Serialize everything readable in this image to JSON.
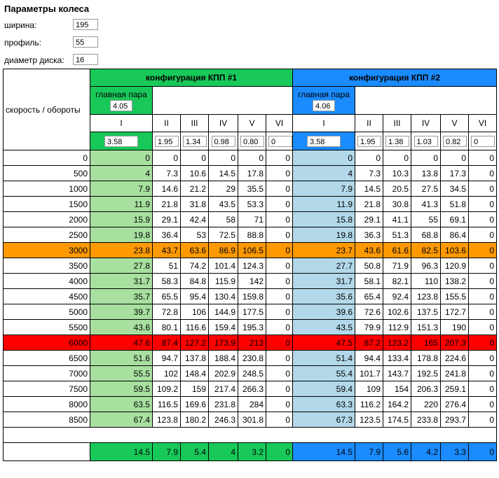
{
  "header": {
    "title": "Параметры колеса"
  },
  "params": [
    {
      "label": "ширина:",
      "value": "195"
    },
    {
      "label": "профиль:",
      "value": "55"
    },
    {
      "label": "диаметр диска:",
      "value": "16"
    }
  ],
  "table": {
    "corner": "скорость / обороты",
    "configs": [
      {
        "title": "конфигурация КПП #1",
        "color": "#18c95a",
        "light_color": "#a8e0a0",
        "main_pair_label": "главная пара",
        "main_pair": "4.05",
        "gears": [
          "I",
          "II",
          "III",
          "IV",
          "V",
          "VI"
        ],
        "ratios": [
          "3.58",
          "1.95",
          "1.34",
          "0.98",
          "0.80",
          "0"
        ],
        "totals": [
          "14.5",
          "7.9",
          "5.4",
          "4",
          "3.2",
          "0"
        ]
      },
      {
        "title": "конфигурация КПП #2",
        "color": "#1a8cff",
        "light_color": "#b2d8ea",
        "main_pair_label": "главная пара",
        "main_pair": "4.06",
        "gears": [
          "I",
          "II",
          "III",
          "IV",
          "V",
          "VI"
        ],
        "ratios": [
          "3.58",
          "1.95",
          "1.38",
          "1.03",
          "0.82",
          "0"
        ],
        "totals": [
          "14.5",
          "7.9",
          "5.6",
          "4.2",
          "3.3",
          "0"
        ]
      }
    ],
    "rows": [
      {
        "rpm": "0",
        "values": [
          [
            "0",
            "0",
            "0",
            "0",
            "0",
            "0"
          ],
          [
            "0",
            "0",
            "0",
            "0",
            "0",
            "0"
          ]
        ]
      },
      {
        "rpm": "500",
        "values": [
          [
            "4",
            "7.3",
            "10.6",
            "14.5",
            "17.8",
            "0"
          ],
          [
            "4",
            "7.3",
            "10.3",
            "13.8",
            "17.3",
            "0"
          ]
        ]
      },
      {
        "rpm": "1000",
        "values": [
          [
            "7.9",
            "14.6",
            "21.2",
            "29",
            "35.5",
            "0"
          ],
          [
            "7.9",
            "14.5",
            "20.5",
            "27.5",
            "34.5",
            "0"
          ]
        ]
      },
      {
        "rpm": "1500",
        "values": [
          [
            "11.9",
            "21.8",
            "31.8",
            "43.5",
            "53.3",
            "0"
          ],
          [
            "11.9",
            "21.8",
            "30.8",
            "41.3",
            "51.8",
            "0"
          ]
        ]
      },
      {
        "rpm": "2000",
        "values": [
          [
            "15.9",
            "29.1",
            "42.4",
            "58",
            "71",
            "0"
          ],
          [
            "15.8",
            "29.1",
            "41.1",
            "55",
            "69.1",
            "0"
          ]
        ]
      },
      {
        "rpm": "2500",
        "values": [
          [
            "19.8",
            "36.4",
            "53",
            "72.5",
            "88.8",
            "0"
          ],
          [
            "19.8",
            "36.3",
            "51.3",
            "68.8",
            "86.4",
            "0"
          ]
        ]
      },
      {
        "rpm": "3000",
        "color": "#ff9900",
        "values": [
          [
            "23.8",
            "43.7",
            "63.6",
            "86.9",
            "106.5",
            "0"
          ],
          [
            "23.7",
            "43.6",
            "61.6",
            "82.5",
            "103.6",
            "0"
          ]
        ]
      },
      {
        "rpm": "3500",
        "values": [
          [
            "27.8",
            "51",
            "74.2",
            "101.4",
            "124.3",
            "0"
          ],
          [
            "27.7",
            "50.8",
            "71.9",
            "96.3",
            "120.9",
            "0"
          ]
        ]
      },
      {
        "rpm": "4000",
        "values": [
          [
            "31.7",
            "58.3",
            "84.8",
            "115.9",
            "142",
            "0"
          ],
          [
            "31.7",
            "58.1",
            "82.1",
            "110",
            "138.2",
            "0"
          ]
        ]
      },
      {
        "rpm": "4500",
        "values": [
          [
            "35.7",
            "65.5",
            "95.4",
            "130.4",
            "159.8",
            "0"
          ],
          [
            "35.6",
            "65.4",
            "92.4",
            "123.8",
            "155.5",
            "0"
          ]
        ]
      },
      {
        "rpm": "5000",
        "values": [
          [
            "39.7",
            "72.8",
            "106",
            "144.9",
            "177.5",
            "0"
          ],
          [
            "39.6",
            "72.6",
            "102.6",
            "137.5",
            "172.7",
            "0"
          ]
        ]
      },
      {
        "rpm": "5500",
        "values": [
          [
            "43.6",
            "80.1",
            "116.6",
            "159.4",
            "195.3",
            "0"
          ],
          [
            "43.5",
            "79.9",
            "112.9",
            "151.3",
            "190",
            "0"
          ]
        ]
      },
      {
        "rpm": "6000",
        "color": "#ff0000",
        "values": [
          [
            "47.6",
            "87.4",
            "127.2",
            "173.9",
            "213",
            "0"
          ],
          [
            "47.5",
            "87.2",
            "123.2",
            "165",
            "207.3",
            "0"
          ]
        ]
      },
      {
        "rpm": "6500",
        "values": [
          [
            "51.6",
            "94.7",
            "137.8",
            "188.4",
            "230.8",
            "0"
          ],
          [
            "51.4",
            "94.4",
            "133.4",
            "178.8",
            "224.6",
            "0"
          ]
        ]
      },
      {
        "rpm": "7000",
        "values": [
          [
            "55.5",
            "102",
            "148.4",
            "202.9",
            "248.5",
            "0"
          ],
          [
            "55.4",
            "101.7",
            "143.7",
            "192.5",
            "241.8",
            "0"
          ]
        ]
      },
      {
        "rpm": "7500",
        "values": [
          [
            "59.5",
            "109.2",
            "159",
            "217.4",
            "266.3",
            "0"
          ],
          [
            "59.4",
            "109",
            "154",
            "206.3",
            "259.1",
            "0"
          ]
        ]
      },
      {
        "rpm": "8000",
        "values": [
          [
            "63.5",
            "116.5",
            "169.6",
            "231.8",
            "284",
            "0"
          ],
          [
            "63.3",
            "116.2",
            "164.2",
            "220",
            "276.4",
            "0"
          ]
        ]
      },
      {
        "rpm": "8500",
        "values": [
          [
            "67.4",
            "123.8",
            "180.2",
            "246.3",
            "301.8",
            "0"
          ],
          [
            "67.3",
            "123.5",
            "174.5",
            "233.8",
            "293.7",
            "0"
          ]
        ]
      }
    ]
  }
}
